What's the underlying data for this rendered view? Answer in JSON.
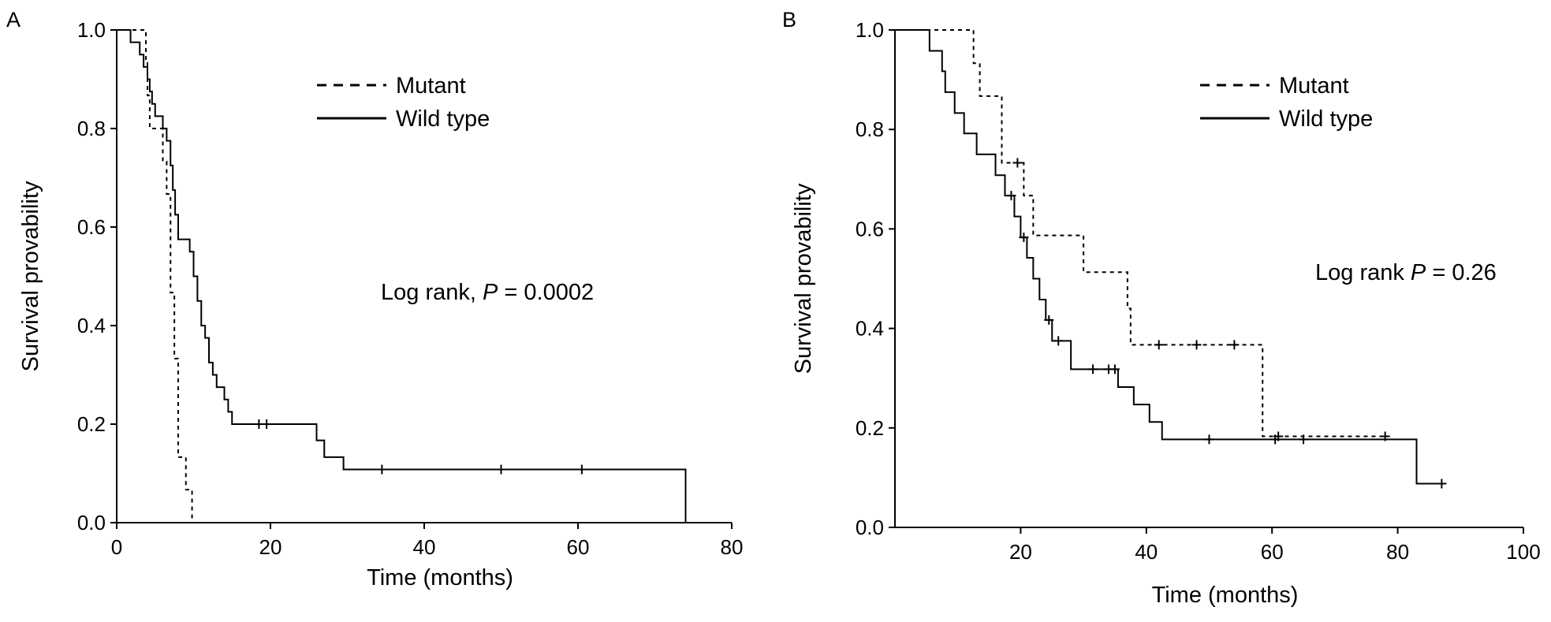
{
  "figure": {
    "panels": [
      {
        "id": "A",
        "panel_label": "A",
        "annotation": {
          "prefix": "Log rank, ",
          "p": "P",
          "suffix": " = 0.0002"
        }
      },
      {
        "id": "B",
        "panel_label": "B",
        "annotation": {
          "prefix": "Log rank ",
          "p": "P",
          "suffix": " = 0.26"
        }
      }
    ]
  },
  "chart_data": [
    {
      "type": "line",
      "subtype": "kaplan-meier",
      "title": "",
      "xlabel": "Time (months)",
      "ylabel": "Survival provability",
      "xlim": [
        0,
        80
      ],
      "ylim": [
        0,
        1.0
      ],
      "xticks": [
        0,
        20,
        40,
        60,
        80
      ],
      "yticks": [
        0.0,
        0.2,
        0.4,
        0.6,
        0.8,
        1.0
      ],
      "xtick_labels": [
        "0",
        "20",
        "40",
        "60",
        "80"
      ],
      "ytick_labels": [
        "0.0",
        "0.2",
        "0.4",
        "0.6",
        "0.8",
        "1.0"
      ],
      "grid": false,
      "legend_position": "top-right",
      "series": [
        {
          "name": "Mutant",
          "style": "dashed",
          "color": "#000000",
          "steps": [
            [
              0,
              1.0
            ],
            [
              3.8,
              0.933
            ],
            [
              4.0,
              0.867
            ],
            [
              4.3,
              0.8
            ],
            [
              6.0,
              0.733
            ],
            [
              6.5,
              0.667
            ],
            [
              7.0,
              0.467
            ],
            [
              7.5,
              0.333
            ],
            [
              8.0,
              0.133
            ],
            [
              9.0,
              0.067
            ],
            [
              9.8,
              0.0
            ]
          ],
          "censored": []
        },
        {
          "name": "Wild type",
          "style": "solid",
          "color": "#000000",
          "steps": [
            [
              0,
              1.0
            ],
            [
              1.8,
              0.975
            ],
            [
              3.0,
              0.95
            ],
            [
              3.5,
              0.925
            ],
            [
              4.0,
              0.9
            ],
            [
              4.3,
              0.875
            ],
            [
              4.6,
              0.85
            ],
            [
              5.0,
              0.825
            ],
            [
              6.0,
              0.8
            ],
            [
              6.5,
              0.775
            ],
            [
              7.0,
              0.725
            ],
            [
              7.3,
              0.675
            ],
            [
              7.6,
              0.625
            ],
            [
              8.0,
              0.575
            ],
            [
              9.5,
              0.55
            ],
            [
              10.0,
              0.5
            ],
            [
              10.5,
              0.45
            ],
            [
              11.0,
              0.4
            ],
            [
              11.5,
              0.375
            ],
            [
              12.0,
              0.325
            ],
            [
              12.5,
              0.3
            ],
            [
              13.0,
              0.275
            ],
            [
              14.0,
              0.25
            ],
            [
              14.5,
              0.225
            ],
            [
              15.0,
              0.2
            ],
            [
              26.0,
              0.167
            ],
            [
              27.0,
              0.133
            ],
            [
              29.5,
              0.108
            ],
            [
              74.0,
              0.0
            ]
          ],
          "censored": [
            [
              18.5,
              0.2
            ],
            [
              19.5,
              0.2
            ],
            [
              34.5,
              0.108
            ],
            [
              50.0,
              0.108
            ],
            [
              60.5,
              0.108
            ]
          ]
        }
      ]
    },
    {
      "type": "line",
      "subtype": "kaplan-meier",
      "title": "",
      "xlabel": "Time (months)",
      "ylabel": "Survival provability",
      "xlim": [
        0,
        100
      ],
      "ylim": [
        0,
        1.0
      ],
      "xticks": [
        20,
        40,
        60,
        80,
        100
      ],
      "yticks": [
        0.0,
        0.2,
        0.4,
        0.6,
        0.8,
        1.0
      ],
      "xtick_labels": [
        "20",
        "40",
        "60",
        "80",
        "100"
      ],
      "ytick_labels": [
        "0.0",
        "0.2",
        "0.4",
        "0.6",
        "0.8",
        "1.0"
      ],
      "grid": false,
      "legend_position": "top-right",
      "series": [
        {
          "name": "Mutant",
          "style": "dashed",
          "color": "#000000",
          "steps": [
            [
              0,
              1.0
            ],
            [
              12.5,
              0.933
            ],
            [
              13.5,
              0.867
            ],
            [
              17.0,
              0.733
            ],
            [
              20.5,
              0.667
            ],
            [
              22.0,
              0.587
            ],
            [
              30.0,
              0.513
            ],
            [
              37.0,
              0.44
            ],
            [
              37.5,
              0.367
            ],
            [
              58.5,
              0.183
            ]
          ],
          "censored": [
            [
              19.5,
              0.733
            ],
            [
              42.0,
              0.367
            ],
            [
              48.0,
              0.367
            ],
            [
              54.0,
              0.367
            ],
            [
              61.0,
              0.183
            ],
            [
              78.0,
              0.183
            ]
          ]
        },
        {
          "name": "Wild type",
          "style": "solid",
          "color": "#000000",
          "steps": [
            [
              0,
              1.0
            ],
            [
              5.5,
              0.958
            ],
            [
              7.5,
              0.917
            ],
            [
              8.0,
              0.875
            ],
            [
              9.5,
              0.833
            ],
            [
              11.0,
              0.792
            ],
            [
              13.0,
              0.75
            ],
            [
              16.0,
              0.708
            ],
            [
              17.5,
              0.667
            ],
            [
              19.0,
              0.625
            ],
            [
              20.0,
              0.583
            ],
            [
              21.0,
              0.542
            ],
            [
              22.0,
              0.5
            ],
            [
              23.0,
              0.458
            ],
            [
              24.0,
              0.417
            ],
            [
              25.0,
              0.375
            ],
            [
              28.0,
              0.318
            ],
            [
              35.5,
              0.282
            ],
            [
              38.0,
              0.247
            ],
            [
              40.5,
              0.212
            ],
            [
              42.5,
              0.177
            ],
            [
              83.0,
              0.088
            ]
          ],
          "censored": [
            [
              18.5,
              0.667
            ],
            [
              20.5,
              0.583
            ],
            [
              24.5,
              0.417
            ],
            [
              26.0,
              0.375
            ],
            [
              31.5,
              0.318
            ],
            [
              34.0,
              0.318
            ],
            [
              35.0,
              0.318
            ],
            [
              50.0,
              0.177
            ],
            [
              60.5,
              0.177
            ],
            [
              65.0,
              0.177
            ],
            [
              87.0,
              0.088
            ]
          ]
        }
      ]
    }
  ]
}
